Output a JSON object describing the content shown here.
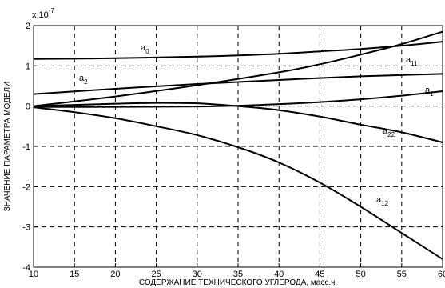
{
  "chart_data": {
    "type": "line",
    "xlabel": "СОДЕРЖАНИЕ ТЕХНИЧЕСКОГО УГЛЕРОДА, масс.ч.",
    "ylabel": "ЗНАЧЕНИЕ ПАРАМЕТРА МОДЕЛИ",
    "y_multiplier_label": "x 10",
    "y_multiplier_exponent": "-7",
    "xlim": [
      10,
      60
    ],
    "ylim": [
      -4,
      2
    ],
    "xticks": [
      "10",
      "15",
      "20",
      "25",
      "30",
      "35",
      "40",
      "45",
      "50",
      "55",
      "60"
    ],
    "yticks": [
      "2",
      "1",
      "0",
      "-1",
      "-2",
      "-3",
      "-4"
    ],
    "grid": true,
    "series": [
      {
        "name": "a",
        "sub": "0",
        "x": [
          10,
          20,
          30,
          35,
          40,
          45,
          50,
          55,
          60
        ],
        "y": [
          1.17,
          1.19,
          1.23,
          1.26,
          1.3,
          1.36,
          1.42,
          1.5,
          1.6
        ]
      },
      {
        "name": "a",
        "sub": "11",
        "x": [
          10,
          20,
          30,
          40,
          45,
          50,
          55,
          60
        ],
        "y": [
          0.0,
          0.24,
          0.52,
          0.84,
          1.04,
          1.28,
          1.54,
          1.85
        ]
      },
      {
        "name": "a",
        "sub": "2",
        "x": [
          10,
          20,
          30,
          40,
          50,
          60
        ],
        "y": [
          0.3,
          0.43,
          0.55,
          0.65,
          0.74,
          0.8
        ]
      },
      {
        "name": "a",
        "sub": "1",
        "x": [
          10,
          20,
          30,
          35,
          40,
          45,
          50,
          55,
          60
        ],
        "y": [
          -0.02,
          -0.02,
          -0.01,
          0.01,
          0.05,
          0.1,
          0.17,
          0.26,
          0.37
        ]
      },
      {
        "name": "a",
        "sub": "22",
        "x": [
          10,
          20,
          25,
          30,
          35,
          40,
          45,
          50,
          55,
          60
        ],
        "y": [
          0.0,
          0.06,
          0.08,
          0.07,
          0.0,
          -0.1,
          -0.26,
          -0.46,
          -0.65,
          -0.9
        ]
      },
      {
        "name": "a",
        "sub": "12",
        "x": [
          10,
          15,
          20,
          25,
          30,
          35,
          40,
          45,
          50,
          55,
          60
        ],
        "y": [
          -0.03,
          -0.15,
          -0.3,
          -0.5,
          -0.72,
          -1.02,
          -1.4,
          -1.9,
          -2.5,
          -3.15,
          -3.8
        ]
      }
    ]
  }
}
